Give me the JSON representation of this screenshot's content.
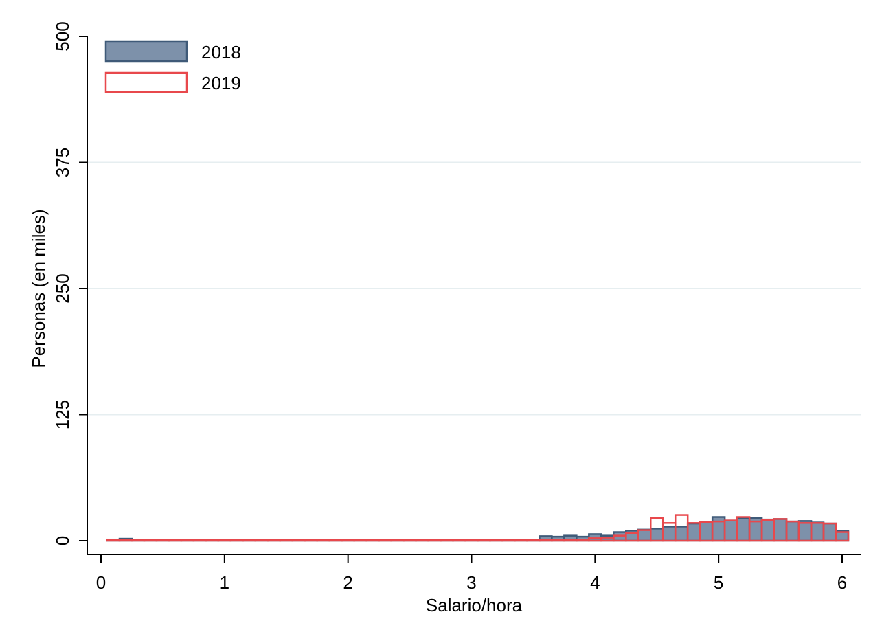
{
  "chart_data": {
    "type": "bar",
    "subtype": "overlaid-histogram",
    "xlabel": "Salario/hora",
    "ylabel": "Personas (en miles)",
    "xlim": [
      0,
      6
    ],
    "ylim": [
      0,
      500
    ],
    "x_ticks": [
      0,
      1,
      2,
      3,
      4,
      5,
      6
    ],
    "y_ticks": [
      0,
      125,
      250,
      375,
      500
    ],
    "grid": "horizontal",
    "legend_position": "top-left",
    "bin_width": 0.1,
    "bin_starts": [
      0.05,
      0.15,
      0.25,
      0.35,
      0.45,
      0.55,
      0.65,
      0.75,
      0.85,
      0.95,
      1.05,
      1.15,
      1.25,
      1.35,
      1.45,
      1.55,
      1.65,
      1.75,
      1.85,
      1.95,
      2.05,
      2.15,
      2.25,
      2.35,
      2.45,
      2.55,
      2.65,
      2.75,
      2.85,
      2.95,
      3.05,
      3.15,
      3.25,
      3.35,
      3.45,
      3.55,
      3.65,
      3.75,
      3.85,
      3.95,
      4.05,
      4.15,
      4.25,
      4.35,
      4.45,
      4.55,
      4.65,
      4.75,
      4.85,
      4.95,
      5.05,
      5.15,
      5.25,
      5.35,
      5.45,
      5.55,
      5.65,
      5.75,
      5.85,
      5.95
    ],
    "series": [
      {
        "name": "2018",
        "fill": "#7d91aa",
        "stroke": "#3f5a78",
        "values": [
          1.2,
          2.0,
          0.8,
          0.5,
          0.5,
          0.5,
          0.5,
          0.5,
          0.5,
          0.5,
          0.5,
          0.5,
          0.5,
          0.5,
          0.5,
          0.5,
          0.5,
          0.5,
          0.5,
          0.5,
          0.5,
          0.5,
          0.5,
          0.5,
          0.5,
          0.5,
          0.5,
          0.5,
          0.5,
          0.5,
          0.6,
          0.6,
          0.7,
          0.8,
          1.0,
          4.5,
          4.0,
          5.0,
          4.0,
          6.5,
          5.0,
          8.5,
          10.0,
          11.0,
          12.0,
          14.0,
          14.0,
          17.0,
          18.0,
          23.5,
          20.0,
          22.5,
          22.5,
          21.0,
          21.5,
          19.0,
          19.5,
          18.0,
          17.0,
          9.5
        ]
      },
      {
        "name": "2019",
        "fill": "none",
        "stroke": "#e8484c",
        "values": [
          1.0,
          0.5,
          0.5,
          0.5,
          0.5,
          0.5,
          0.5,
          0.5,
          0.5,
          0.5,
          0.5,
          0.5,
          0.5,
          0.5,
          0.5,
          0.5,
          0.5,
          0.5,
          0.5,
          0.5,
          0.5,
          0.5,
          0.5,
          0.5,
          0.5,
          0.5,
          0.5,
          0.5,
          0.5,
          0.5,
          0.5,
          0.5,
          0.5,
          0.5,
          0.6,
          1.0,
          1.0,
          1.0,
          1.0,
          2.5,
          3.0,
          5.0,
          7.5,
          10.5,
          22.5,
          17.5,
          25.5,
          17.5,
          18.5,
          19.0,
          20.0,
          23.5,
          19.0,
          20.5,
          21.5,
          19.0,
          17.5,
          17.5,
          17.0,
          8.5
        ]
      }
    ]
  }
}
